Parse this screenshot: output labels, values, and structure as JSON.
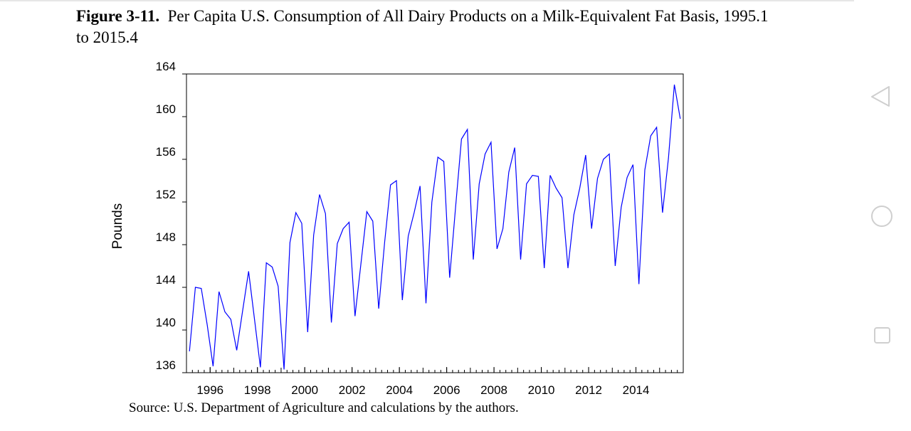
{
  "caption": {
    "figure_number": "Figure 3-11.",
    "text": "Per Capita U.S. Consumption of All Dairy Products on a Milk-Equivalent Fat Basis, 1995.1 to 2015.4"
  },
  "source": "Source: U.S. Department of Agriculture and calculations by the authors.",
  "nav": {
    "back_icon": "triangle-back-icon",
    "home_icon": "circle-home-icon",
    "recents_icon": "square-recents-icon"
  },
  "colors": {
    "series": "#0000ff",
    "axis": "#000000"
  },
  "chart_data": {
    "type": "line",
    "title": "",
    "xlabel": "",
    "ylabel": "Pounds",
    "ylim": [
      136,
      164
    ],
    "yticks": [
      "136",
      "140",
      "144",
      "148",
      "152",
      "156",
      "160",
      "164"
    ],
    "xlim": [
      1995.0,
      2016.0
    ],
    "xticks": [
      "1996",
      "1998",
      "2000",
      "2002",
      "2004",
      "2006",
      "2008",
      "2010",
      "2012",
      "2014"
    ],
    "grid": false,
    "legend": "none",
    "series": [
      {
        "name": "Per capita consumption (milk-equivalent, fat basis)",
        "x": [
          1995.125,
          1995.375,
          1995.625,
          1995.875,
          1996.125,
          1996.375,
          1996.625,
          1996.875,
          1997.125,
          1997.375,
          1997.625,
          1997.875,
          1998.125,
          1998.375,
          1998.625,
          1998.875,
          1999.125,
          1999.375,
          1999.625,
          1999.875,
          2000.125,
          2000.375,
          2000.625,
          2000.875,
          2001.125,
          2001.375,
          2001.625,
          2001.875,
          2002.125,
          2002.375,
          2002.625,
          2002.875,
          2003.125,
          2003.375,
          2003.625,
          2003.875,
          2004.125,
          2004.375,
          2004.625,
          2004.875,
          2005.125,
          2005.375,
          2005.625,
          2005.875,
          2006.125,
          2006.375,
          2006.625,
          2006.875,
          2007.125,
          2007.375,
          2007.625,
          2007.875,
          2008.125,
          2008.375,
          2008.625,
          2008.875,
          2009.125,
          2009.375,
          2009.625,
          2009.875,
          2010.125,
          2010.375,
          2010.625,
          2010.875,
          2011.125,
          2011.375,
          2011.625,
          2011.875,
          2012.125,
          2012.375,
          2012.625,
          2012.875,
          2013.125,
          2013.375,
          2013.625,
          2013.875,
          2014.125,
          2014.375,
          2014.625,
          2014.875,
          2015.125,
          2015.375,
          2015.625,
          2015.875
        ],
        "values": [
          138.0,
          144.0,
          143.9,
          140.5,
          136.6,
          143.6,
          141.7,
          141.0,
          138.1,
          141.8,
          145.5,
          141.0,
          136.5,
          146.3,
          145.9,
          144.1,
          136.3,
          148.2,
          151.0,
          150.0,
          139.8,
          148.9,
          152.7,
          150.9,
          140.7,
          148.1,
          149.5,
          150.1,
          141.3,
          146.2,
          151.1,
          150.2,
          142.0,
          148.2,
          153.6,
          154.0,
          142.8,
          148.8,
          151.0,
          153.5,
          142.5,
          152.0,
          156.2,
          155.8,
          144.9,
          151.5,
          157.9,
          158.8,
          146.6,
          153.7,
          156.5,
          157.6,
          147.6,
          149.5,
          154.8,
          157.1,
          146.6,
          153.7,
          154.5,
          154.4,
          145.8,
          154.5,
          153.3,
          152.4,
          145.8,
          150.8,
          153.3,
          156.4,
          149.5,
          154.2,
          156.0,
          156.5,
          146.0,
          151.5,
          154.3,
          155.5,
          144.3,
          155.0,
          158.2,
          159.0,
          151.0,
          156.1,
          163.0,
          159.8
        ]
      }
    ]
  }
}
